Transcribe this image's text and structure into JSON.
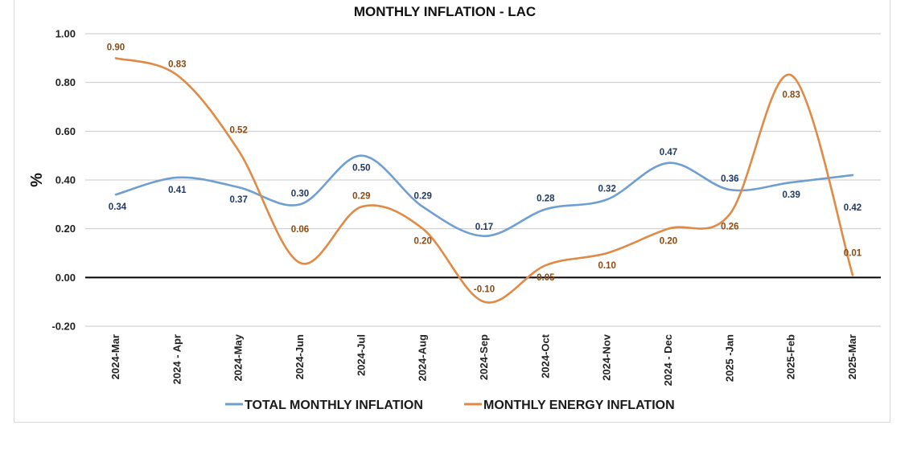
{
  "chart_data": {
    "type": "line",
    "title": "MONTHLY INFLATION - LAC",
    "ylabel": "%",
    "xlabel": "",
    "ylim": [
      -0.2,
      1.0
    ],
    "yticks": [
      "1.00",
      "0.80",
      "0.60",
      "0.40",
      "0.20",
      "0.00",
      "-0.20"
    ],
    "ytick_values": [
      1.0,
      0.8,
      0.6,
      0.4,
      0.2,
      0.0,
      -0.2
    ],
    "grid": true,
    "legend_position": "bottom",
    "categories": [
      "2024-Mar",
      "2024 - Apr",
      "2024-May",
      "2024-Jun",
      "2024-Jul",
      "2024-Aug",
      "2024-Sep",
      "2024-Oct",
      "2024-Nov",
      "2024 - Dec",
      "2025 -Jan",
      "2025-Feb",
      "2025-Mar"
    ],
    "series": [
      {
        "name": "TOTAL MONTHLY INFLATION",
        "color": "#6f9fd1",
        "label_color": "#1f3864",
        "values": [
          0.34,
          0.41,
          0.37,
          0.3,
          0.5,
          0.29,
          0.17,
          0.28,
          0.32,
          0.47,
          0.36,
          0.39,
          0.42
        ],
        "labels": [
          "0.34",
          "0.41",
          "0.37",
          "0.30",
          "0.50",
          "0.29",
          "0.17",
          "0.28",
          "0.32",
          "0.47",
          "0.36",
          "0.39",
          "0.42"
        ]
      },
      {
        "name": "MONTHLY ENERGY INFLATION",
        "color": "#e08a45",
        "label_color": "#8a4a12",
        "values": [
          0.9,
          0.83,
          0.52,
          0.06,
          0.29,
          0.2,
          -0.1,
          0.05,
          0.1,
          0.2,
          0.26,
          0.83,
          0.01
        ],
        "labels": [
          "0.90",
          "0.83",
          "0.52",
          "0.06",
          "0.29",
          "0.20",
          "-0.10",
          "0.05",
          "0.10",
          "0.20",
          "0.26",
          "0.83",
          "0.01"
        ]
      }
    ]
  }
}
